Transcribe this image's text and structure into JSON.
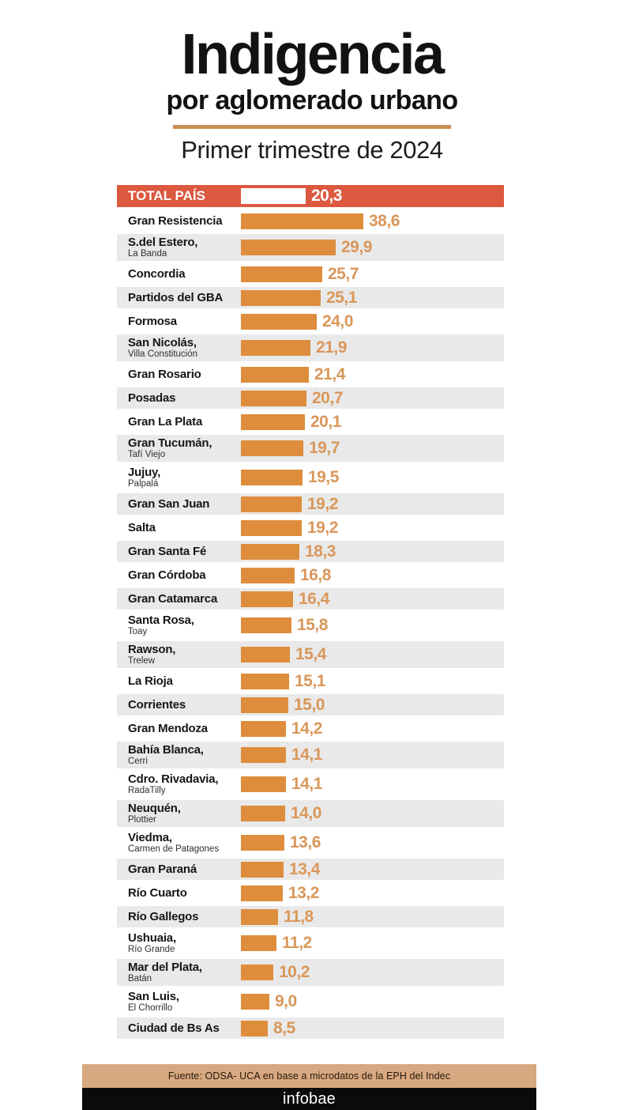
{
  "chart_data": {
    "type": "bar",
    "orientation": "horizontal",
    "title": "Indigencia",
    "subtitle": "por aglomerado urbano",
    "period": "Primer trimestre de 2024",
    "value_format": "decimal-comma",
    "xlim": [
      0,
      40
    ],
    "legend": "none",
    "grid": false,
    "total": {
      "label": "TOTAL PAÍS",
      "value": 20.3,
      "display": "20,3"
    },
    "rows": [
      {
        "name": "Gran Resistencia",
        "sub": "",
        "value": 38.6,
        "display": "38,6"
      },
      {
        "name": "S.del Estero,",
        "sub": "La Banda",
        "value": 29.9,
        "display": "29,9"
      },
      {
        "name": "Concordia",
        "sub": "",
        "value": 25.7,
        "display": "25,7"
      },
      {
        "name": "Partidos del GBA",
        "sub": "",
        "value": 25.1,
        "display": "25,1"
      },
      {
        "name": "Formosa",
        "sub": "",
        "value": 24.0,
        "display": "24,0"
      },
      {
        "name": "San Nicolás,",
        "sub": "Villa Constitución",
        "value": 21.9,
        "display": "21,9"
      },
      {
        "name": "Gran Rosario",
        "sub": "",
        "value": 21.4,
        "display": "21,4"
      },
      {
        "name": "Posadas",
        "sub": "",
        "value": 20.7,
        "display": "20,7"
      },
      {
        "name": "Gran La Plata",
        "sub": "",
        "value": 20.1,
        "display": "20,1"
      },
      {
        "name": "Gran Tucumán,",
        "sub": "Tafí Viejo",
        "value": 19.7,
        "display": "19,7"
      },
      {
        "name": "Jujuy,",
        "sub": "Palpalá",
        "value": 19.5,
        "display": "19,5"
      },
      {
        "name": "Gran San Juan",
        "sub": "",
        "value": 19.2,
        "display": "19,2"
      },
      {
        "name": "Salta",
        "sub": "",
        "value": 19.2,
        "display": "19,2"
      },
      {
        "name": "Gran Santa Fé",
        "sub": "",
        "value": 18.3,
        "display": "18,3"
      },
      {
        "name": "Gran Córdoba",
        "sub": "",
        "value": 16.8,
        "display": "16,8"
      },
      {
        "name": "Gran Catamarca",
        "sub": "",
        "value": 16.4,
        "display": "16,4"
      },
      {
        "name": "Santa Rosa,",
        "sub": "Toay",
        "value": 15.8,
        "display": "15,8"
      },
      {
        "name": "Rawson,",
        "sub": "Trelew",
        "value": 15.4,
        "display": "15,4"
      },
      {
        "name": "La Rioja",
        "sub": "",
        "value": 15.1,
        "display": "15,1"
      },
      {
        "name": "Corrientes",
        "sub": "",
        "value": 15.0,
        "display": "15,0"
      },
      {
        "name": "Gran Mendoza",
        "sub": "",
        "value": 14.2,
        "display": "14,2"
      },
      {
        "name": "Bahía Blanca,",
        "sub": "Cerri",
        "value": 14.1,
        "display": "14,1"
      },
      {
        "name": "Cdro. Rivadavia,",
        "sub": "RadaTilly",
        "value": 14.1,
        "display": "14,1"
      },
      {
        "name": "Neuquén,",
        "sub": "Plottier",
        "value": 14.0,
        "display": "14,0"
      },
      {
        "name": "Viedma,",
        "sub": "Carmen de Patagones",
        "value": 13.6,
        "display": "13,6"
      },
      {
        "name": "Gran Paraná",
        "sub": "",
        "value": 13.4,
        "display": "13,4"
      },
      {
        "name": "Río Cuarto",
        "sub": "",
        "value": 13.2,
        "display": "13,2"
      },
      {
        "name": "Río Gallegos",
        "sub": "",
        "value": 11.8,
        "display": "11,8"
      },
      {
        "name": "Ushuaia,",
        "sub": "Río Grande",
        "value": 11.2,
        "display": "11,2"
      },
      {
        "name": "Mar del Plata,",
        "sub": "Batán",
        "value": 10.2,
        "display": "10,2"
      },
      {
        "name": "San Luis,",
        "sub": "El Chorrillo",
        "value": 9.0,
        "display": "9,0"
      },
      {
        "name": "Ciudad de Bs As",
        "sub": "",
        "value": 8.5,
        "display": "8,5"
      }
    ]
  },
  "footer": {
    "source": "Fuente: ODSA- UCA en base a microdatos de la EPH del Indec",
    "brand": "infobae"
  },
  "colors": {
    "total_band": "#DC5940",
    "bar": "#DE8D3C",
    "value_text": "#D9975A",
    "alt_row": "#E9E9E9",
    "divider": "#C98E52",
    "source_bg": "#D8A880",
    "brand_bg": "#0B0B09"
  }
}
